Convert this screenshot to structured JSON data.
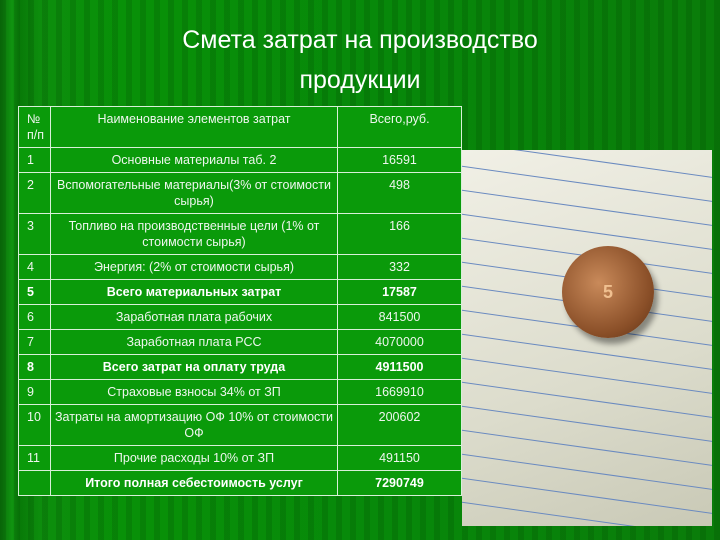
{
  "title": "Смета затрат на производство продукции",
  "table": {
    "headers": [
      "№ п/п",
      "Наименование элементов затрат",
      "Всего,руб."
    ],
    "rows": [
      {
        "n": "1",
        "name": "Основные материалы таб. 2",
        "value": "16591",
        "bold": false
      },
      {
        "n": "2",
        "name": "Вспомогательные материалы(3% от стоимости сырья)",
        "value": "498",
        "bold": false
      },
      {
        "n": "3",
        "name": "Топливо на производственные цели (1% от стоимости сырья)",
        "value": "166",
        "bold": false
      },
      {
        "n": "4",
        "name": "Энергия: (2% от стоимости сырья)",
        "value": "332",
        "bold": false
      },
      {
        "n": "5",
        "name": "Всего материальных затрат",
        "value": "17587",
        "bold": true
      },
      {
        "n": "6",
        "name": "Заработная плата рабочих",
        "value": "841500",
        "bold": false
      },
      {
        "n": "7",
        "name": "Заработная плата РСС",
        "value": "4070000",
        "bold": false
      },
      {
        "n": "8",
        "name": "Всего затрат на оплату труда",
        "value": "4911500",
        "bold": true
      },
      {
        "n": "9",
        "name": "Страховые взносы 34% от ЗП",
        "value": "1669910",
        "bold": false
      },
      {
        "n": "10",
        "name": "Затраты на амортизацию ОФ 10% от стоимости ОФ",
        "value": "200602",
        "bold": false
      },
      {
        "n": "11",
        "name": "Прочие расходы 10% от ЗП",
        "value": "491150",
        "bold": false
      },
      {
        "n": "",
        "name": "Итого полная себестоимость услуг",
        "value": "7290749",
        "bold": true
      }
    ]
  },
  "photo": {
    "coin_label": "5"
  }
}
